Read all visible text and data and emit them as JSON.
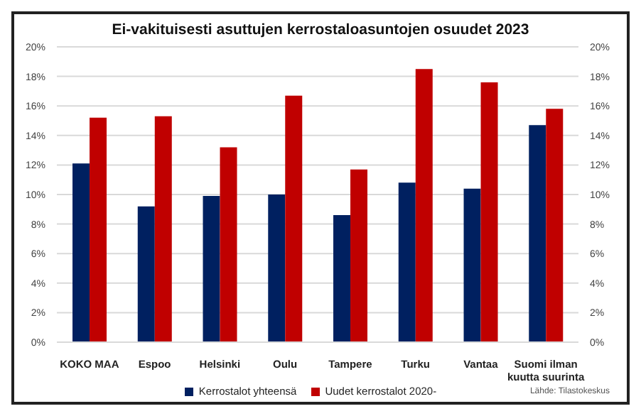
{
  "chart_data": {
    "type": "bar",
    "title": "Ei-vakituisesti asuttujen kerrostaloasuntojen osuudet 2023",
    "categories": [
      "KOKO MAA",
      "Espoo",
      "Helsinki",
      "Oulu",
      "Tampere",
      "Turku",
      "Vantaa",
      "Suomi ilman kuutta suurinta"
    ],
    "series": [
      {
        "name": "Kerrostalot yhteensä",
        "color": "#002060",
        "values": [
          12.1,
          9.2,
          9.9,
          10.0,
          8.6,
          10.8,
          10.4,
          14.7
        ]
      },
      {
        "name": "Uudet kerrostalot 2020-",
        "color": "#c00000",
        "values": [
          15.2,
          15.3,
          13.2,
          16.7,
          11.7,
          18.5,
          17.6,
          15.8
        ]
      }
    ],
    "ylim": [
      0,
      20
    ],
    "yticks": [
      {
        "value": 0,
        "label": "0%"
      },
      {
        "value": 2,
        "label": "2%"
      },
      {
        "value": 4,
        "label": "4%"
      },
      {
        "value": 6,
        "label": "6%"
      },
      {
        "value": 8,
        "label": "8%"
      },
      {
        "value": 10,
        "label": "10%"
      },
      {
        "value": 12,
        "label": "12%"
      },
      {
        "value": 14,
        "label": "14%"
      },
      {
        "value": 16,
        "label": "16%"
      },
      {
        "value": 18,
        "label": "18%"
      },
      {
        "value": 20,
        "label": "20%"
      }
    ],
    "y2lim": [
      0,
      20
    ],
    "y2ticks": [
      {
        "value": 0,
        "label": "0%"
      },
      {
        "value": 2,
        "label": "2%"
      },
      {
        "value": 4,
        "label": "4%"
      },
      {
        "value": 6,
        "label": "6%"
      },
      {
        "value": 8,
        "label": "8%"
      },
      {
        "value": 10,
        "label": "10%"
      },
      {
        "value": 12,
        "label": "12%"
      },
      {
        "value": 14,
        "label": "14%"
      },
      {
        "value": 16,
        "label": "16%"
      },
      {
        "value": 18,
        "label": "18%"
      },
      {
        "value": 20,
        "label": "20%"
      }
    ],
    "grid": "y",
    "legend": "bottom",
    "annotations": [
      "Lähde: Tilastokeskus"
    ]
  }
}
